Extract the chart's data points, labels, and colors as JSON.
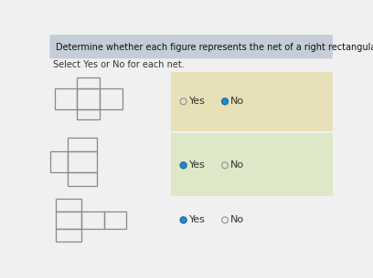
{
  "title": "Determine whether each figure represents the net of a right rectangular prism.",
  "subtitle": "Select Yes or No for each net.",
  "header_bg": "#c5cdd8",
  "page_bg": "#f0f0f0",
  "row1_bg": "#e8e0b8",
  "row2_bg": "#dde8c8",
  "rows": [
    {
      "yes_selected": false,
      "no_selected": true
    },
    {
      "yes_selected": true,
      "no_selected": false
    },
    {
      "yes_selected": true,
      "no_selected": false
    }
  ],
  "radio_color": "#2288cc",
  "radio_empty_color": "#999999",
  "text_color": "#333333",
  "rect_color": "#888888"
}
